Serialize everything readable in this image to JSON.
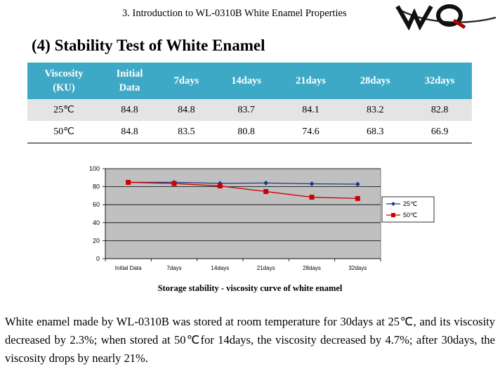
{
  "header": {
    "title": "3. Introduction to WL-0310B White Enamel Properties",
    "logo_text": "WQ"
  },
  "section_title": "(4) Stability Test of White Enamel",
  "table": {
    "headers": [
      "Viscosity\n(KU)",
      "Initial\nData",
      "7days",
      "14days",
      "21days",
      "28days",
      "32days"
    ],
    "rows": [
      [
        "25℃",
        "84.8",
        "84.8",
        "83.7",
        "84.1",
        "83.2",
        "82.8"
      ],
      [
        "50℃",
        "84.8",
        "83.5",
        "80.8",
        "74.6",
        "68.3",
        "66.9"
      ]
    ]
  },
  "chart_data": {
    "type": "line",
    "categories": [
      "Initial Data",
      "7days",
      "14days",
      "21days",
      "28days",
      "32days"
    ],
    "series": [
      {
        "name": "25℃",
        "values": [
          84.8,
          84.8,
          83.7,
          84.1,
          83.2,
          82.8
        ],
        "color": "#1f3a8c",
        "marker": "diamond"
      },
      {
        "name": "50℃",
        "values": [
          84.8,
          83.5,
          80.8,
          74.6,
          68.3,
          66.9
        ],
        "color": "#cc0000",
        "marker": "square"
      }
    ],
    "ylim": [
      0,
      100
    ],
    "yticks": [
      "0",
      "20",
      "40",
      "60",
      "80",
      "100"
    ],
    "grid": true,
    "legend_position": "right",
    "plot_background": "#c0c0c0"
  },
  "caption": "Storage stability - viscosity curve of white enamel",
  "paragraph": "White enamel made by WL-0310B was stored at room temperature for 30days at 25℃, and its viscosity decreased by 2.3%; when stored at 50℃for 14days, the viscosity decreased by 4.7%; after 30days, the viscosity drops by nearly 21%."
}
